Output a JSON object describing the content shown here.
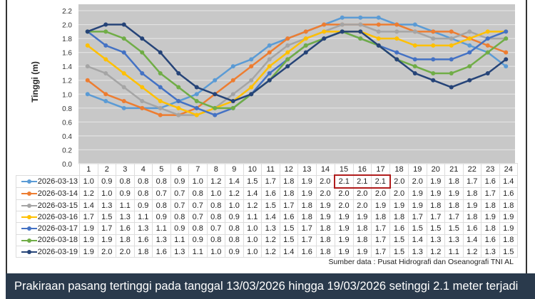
{
  "chart_data": {
    "type": "line",
    "title": "",
    "xlabel": "",
    "ylabel": "Tinggi  (m)",
    "ylim": [
      0,
      2.2
    ],
    "yticks": [
      "0.0",
      "0.2",
      "0.4",
      "0.6",
      "0.8",
      "1.0",
      "1.2",
      "1.4",
      "1.6",
      "1.8",
      "2.0",
      "2.2"
    ],
    "grid": true,
    "legend": "table-left",
    "categories": [
      "1",
      "2",
      "3",
      "4",
      "5",
      "6",
      "7",
      "8",
      "9",
      "10",
      "11",
      "12",
      "13",
      "14",
      "15",
      "16",
      "17",
      "18",
      "19",
      "20",
      "21",
      "22",
      "23",
      "24"
    ],
    "series": [
      {
        "name": "2026-03-13",
        "color": "#5b9bd5",
        "values": [
          1.0,
          0.9,
          0.8,
          0.8,
          0.8,
          0.9,
          1.0,
          1.2,
          1.4,
          1.5,
          1.7,
          1.8,
          1.9,
          2.0,
          2.1,
          2.1,
          2.1,
          2.0,
          2.0,
          1.9,
          1.8,
          1.7,
          1.6,
          1.4
        ]
      },
      {
        "name": "2026-03-14",
        "color": "#ed7d31",
        "values": [
          1.2,
          1.0,
          0.9,
          0.8,
          0.7,
          0.7,
          0.8,
          1.0,
          1.2,
          1.4,
          1.6,
          1.8,
          1.9,
          2.0,
          2.0,
          2.0,
          2.0,
          2.0,
          1.9,
          1.9,
          1.9,
          1.8,
          1.7,
          1.6
        ]
      },
      {
        "name": "2026-03-15",
        "color": "#a5a5a5",
        "values": [
          1.4,
          1.3,
          1.1,
          0.9,
          0.8,
          0.7,
          0.7,
          0.8,
          1.0,
          1.2,
          1.5,
          1.7,
          1.8,
          1.9,
          2.0,
          2.0,
          1.9,
          1.9,
          1.9,
          1.8,
          1.8,
          1.9,
          1.8,
          1.8
        ]
      },
      {
        "name": "2026-03-16",
        "color": "#ffc000",
        "values": [
          1.7,
          1.5,
          1.3,
          1.1,
          0.9,
          0.8,
          0.7,
          0.8,
          0.9,
          1.1,
          1.4,
          1.6,
          1.8,
          1.9,
          1.9,
          1.9,
          1.8,
          1.8,
          1.7,
          1.7,
          1.7,
          1.8,
          1.9,
          1.9
        ]
      },
      {
        "name": "2026-03-17",
        "color": "#4472c4",
        "values": [
          1.9,
          1.7,
          1.6,
          1.3,
          1.1,
          0.9,
          0.8,
          0.7,
          0.8,
          1.0,
          1.3,
          1.5,
          1.7,
          1.8,
          1.9,
          1.8,
          1.7,
          1.6,
          1.5,
          1.5,
          1.5,
          1.6,
          1.8,
          1.9
        ]
      },
      {
        "name": "2026-03-18",
        "color": "#70ad47",
        "values": [
          1.9,
          1.9,
          1.8,
          1.6,
          1.3,
          1.1,
          0.9,
          0.8,
          0.8,
          1.0,
          1.2,
          1.5,
          1.7,
          1.8,
          1.9,
          1.8,
          1.7,
          1.5,
          1.4,
          1.3,
          1.3,
          1.4,
          1.6,
          1.8
        ]
      },
      {
        "name": "2026-03-19",
        "color": "#264478",
        "values": [
          1.9,
          2.0,
          2.0,
          1.8,
          1.6,
          1.3,
          1.1,
          1.0,
          0.9,
          1.0,
          1.2,
          1.4,
          1.6,
          1.8,
          1.9,
          1.9,
          1.7,
          1.5,
          1.3,
          1.2,
          1.1,
          1.2,
          1.3,
          1.5
        ]
      }
    ],
    "highlight": {
      "series": "2026-03-13",
      "hours": [
        "15",
        "16",
        "17"
      ],
      "color": "#b01c1c"
    }
  },
  "source": "Sumber data : Pusat Hidrografi dan Oseanografi TNI AL",
  "banner": "Prakiraan pasang tertinggi  pada tanggal 13/03/2026 hingga 19/03/2026 setinggi 2.1 meter terjadi"
}
